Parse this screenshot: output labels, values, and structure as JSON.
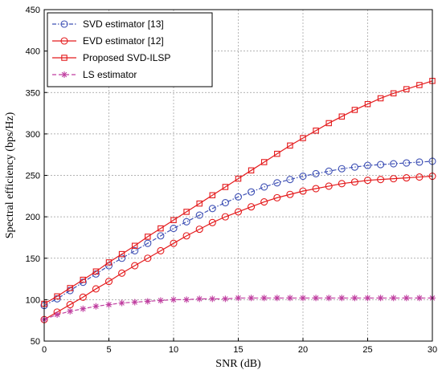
{
  "chart_data": {
    "type": "line",
    "xlabel": "SNR (dB)",
    "ylabel": "Spectral efficiency (bps/Hz)",
    "xlim": [
      0,
      30
    ],
    "ylim": [
      50,
      450
    ],
    "xticks": [
      "0",
      "5",
      "10",
      "15",
      "20",
      "25",
      "30"
    ],
    "yticks": [
      "50",
      "100",
      "150",
      "200",
      "250",
      "300",
      "350",
      "400",
      "450"
    ],
    "grid": true,
    "legend_position": "top-left",
    "x": [
      0,
      1,
      2,
      3,
      4,
      5,
      6,
      7,
      8,
      9,
      10,
      11,
      12,
      13,
      14,
      15,
      16,
      17,
      18,
      19,
      20,
      21,
      22,
      23,
      24,
      25,
      26,
      27,
      28,
      29,
      30
    ],
    "series": [
      {
        "name": "SVD estimator [13]",
        "color": "#3f51b5",
        "linestyle": "dashdot",
        "marker": "circle-open",
        "values": [
          93,
          101,
          111,
          121,
          131,
          141,
          150,
          159,
          168,
          177,
          186,
          194,
          202,
          210,
          217,
          224,
          230,
          236,
          241,
          245,
          249,
          252,
          255,
          258,
          260,
          262,
          263,
          264,
          265,
          266,
          267
        ]
      },
      {
        "name": "EVD estimator [12]",
        "color": "#e41a1c",
        "linestyle": "solid",
        "marker": "circle-open",
        "values": [
          76,
          85,
          94,
          103,
          113,
          122,
          132,
          141,
          150,
          159,
          168,
          177,
          185,
          193,
          200,
          206,
          212,
          218,
          223,
          227,
          231,
          234,
          237,
          240,
          242,
          244,
          245,
          246,
          247,
          248,
          249
        ]
      },
      {
        "name": "Proposed SVD-ILSP",
        "color": "#e41a1c",
        "linestyle": "solid",
        "marker": "square-open",
        "values": [
          95,
          104,
          114,
          124,
          134,
          145,
          155,
          165,
          176,
          186,
          196,
          206,
          216,
          226,
          236,
          246,
          256,
          266,
          276,
          286,
          295,
          304,
          313,
          321,
          329,
          336,
          343,
          349,
          354,
          359,
          364
        ]
      },
      {
        "name": "LS estimator",
        "color": "#c03fa0",
        "linestyle": "dashed",
        "marker": "star",
        "values": [
          76,
          82,
          86,
          89,
          92,
          94,
          96,
          97,
          98,
          99,
          100,
          100,
          101,
          101,
          101,
          102,
          102,
          102,
          102,
          102,
          102,
          102,
          102,
          102,
          102,
          102,
          102,
          102,
          102,
          102,
          102
        ]
      }
    ]
  }
}
